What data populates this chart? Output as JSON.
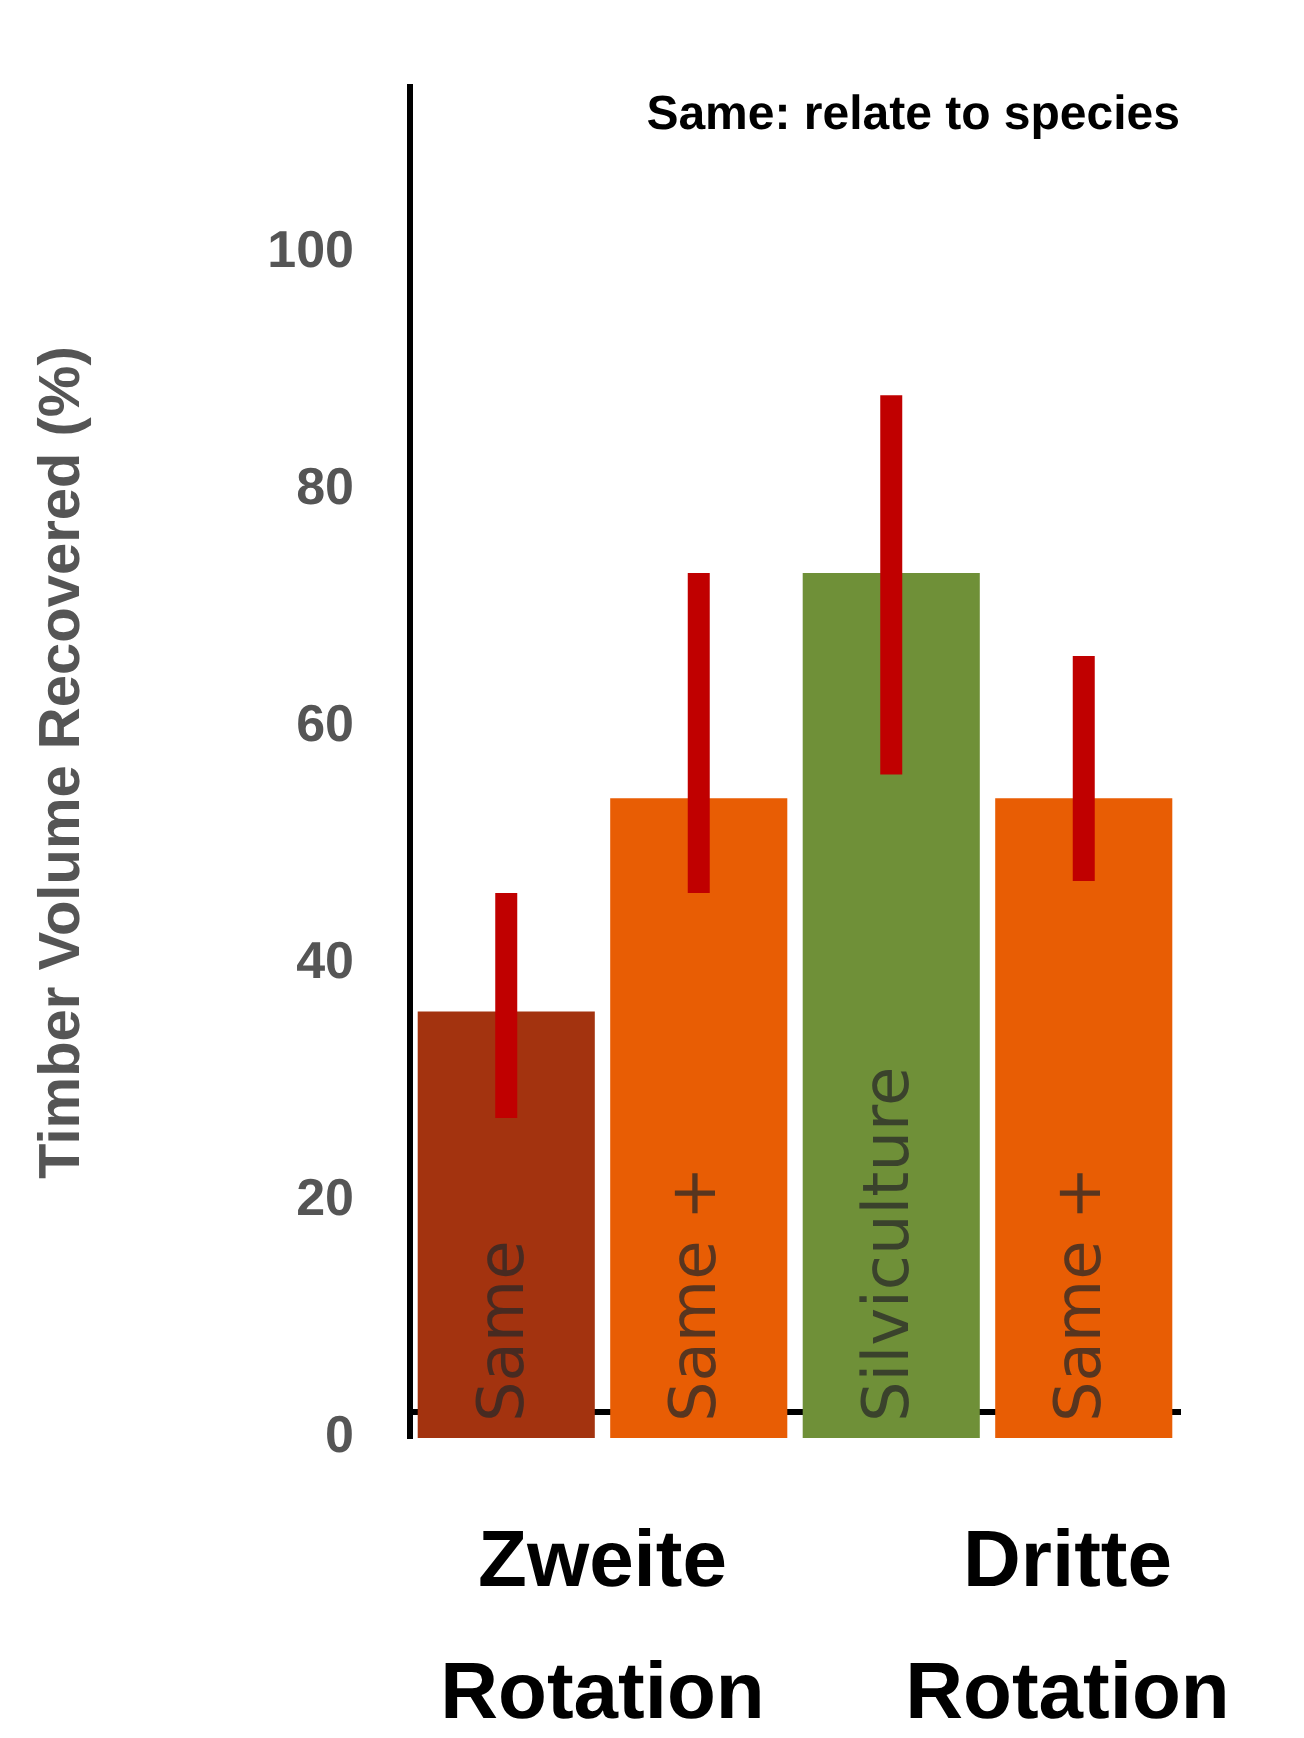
{
  "chart_data": {
    "type": "bar",
    "title": "Same: relate to species",
    "ylabel": "Timber Volume Recovered (%)",
    "categories": [
      "Same",
      "Same +",
      "Silviculture",
      "Same +"
    ],
    "values": [
      36,
      54,
      73,
      54
    ],
    "colors": [
      "#a3330f",
      "#e85d04",
      "#6f9038",
      "#e85d04"
    ],
    "errors": [
      [
        27,
        46
      ],
      [
        46,
        73
      ],
      [
        56,
        88
      ],
      [
        47,
        66
      ]
    ],
    "ylim": [
      0,
      114
    ],
    "yticks": [
      0,
      20,
      40,
      60,
      80,
      100
    ],
    "grid": false,
    "legend": false,
    "annotations": [
      "Zweite Rotation",
      "Dritte Rotation"
    ]
  }
}
